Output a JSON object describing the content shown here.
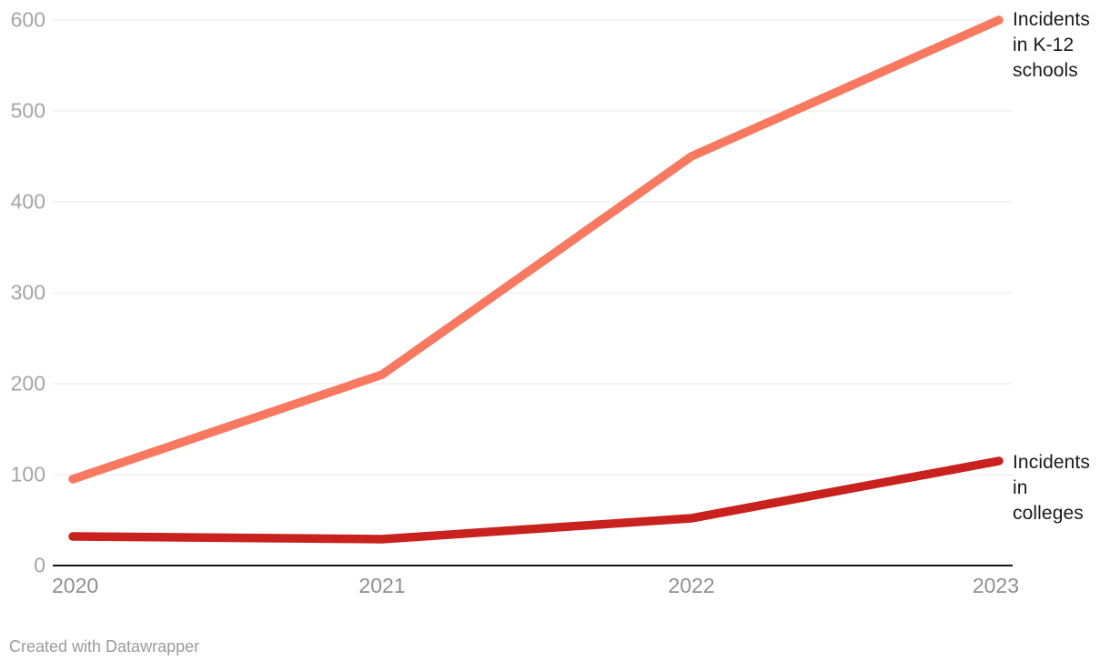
{
  "chart_data": {
    "type": "line",
    "x": [
      "2020",
      "2021",
      "2022",
      "2023"
    ],
    "series": [
      {
        "name": "Incidents in K-12 schools",
        "values": [
          95,
          210,
          450,
          600
        ],
        "color": "#f8795f"
      },
      {
        "name": "Incidents in colleges",
        "values": [
          32,
          29,
          52,
          115
        ],
        "color": "#c8211e"
      }
    ],
    "title": "",
    "xlabel": "",
    "ylabel": "",
    "ylim": [
      0,
      600
    ],
    "yticks": [
      0,
      100,
      200,
      300,
      400,
      500,
      600
    ],
    "grid": true,
    "legend_position": "line-end-labels-right"
  },
  "labels": {
    "series_end": [
      {
        "text": "Incidents in K-12 schools"
      },
      {
        "text": "Incidents in colleges"
      }
    ]
  },
  "footer": {
    "credit": "Created with Datawrapper"
  },
  "colors": {
    "k12_line": "#f8795f",
    "colleges_line": "#c8211e",
    "gridline": "#e9e9e9",
    "axis_line": "#161616",
    "ytick_text": "#a5a5a5",
    "xtick_text": "#8f8f8f",
    "series_label_text": "#1a1a1a",
    "credit_text": "#9b9b9b"
  }
}
